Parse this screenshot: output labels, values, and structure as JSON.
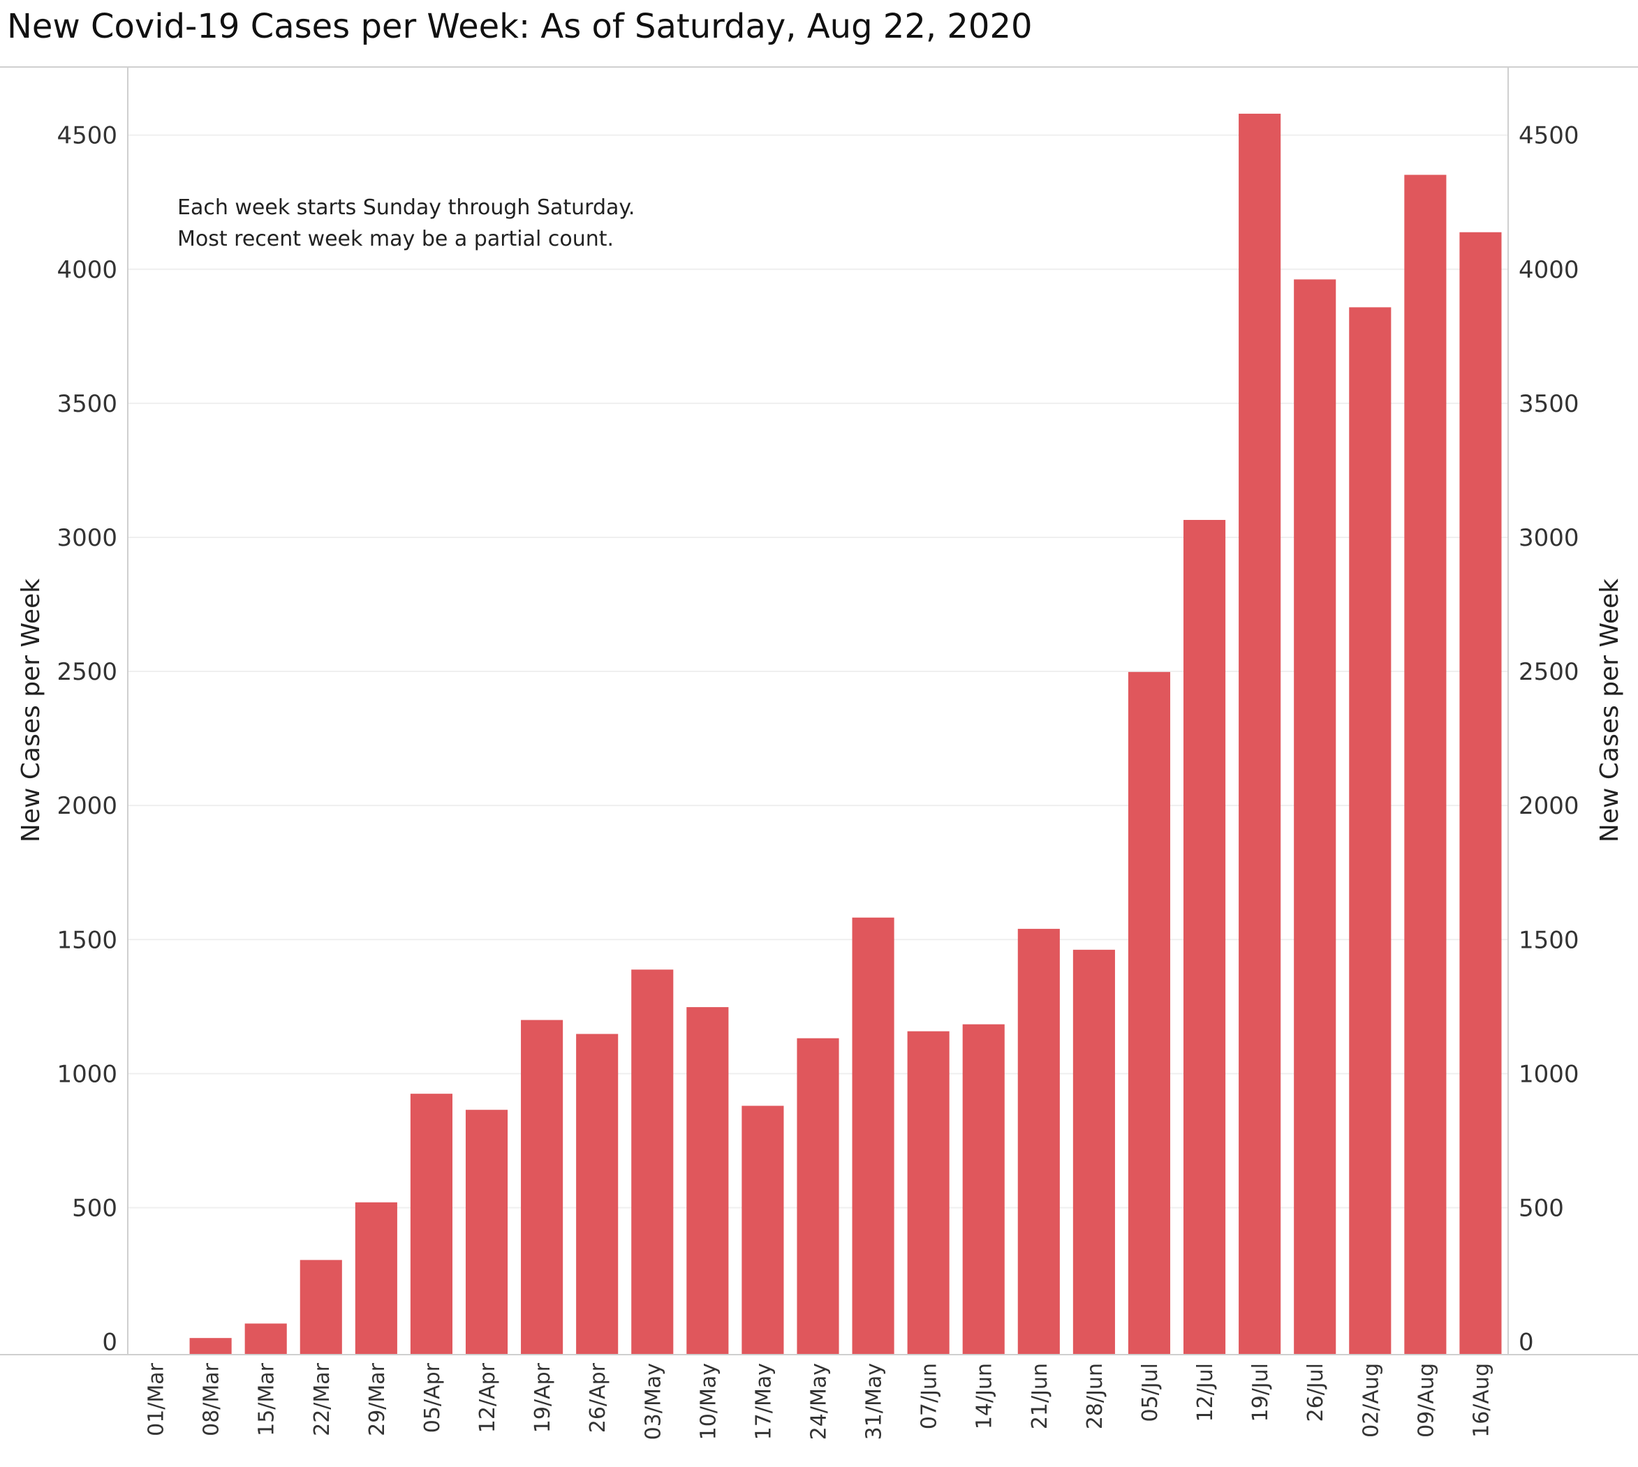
{
  "chart_data": {
    "type": "bar",
    "title": "New Covid-19 Cases per Week:  As of Saturday, Aug 22, 2020",
    "ylabel_left": "New Cases per Week",
    "ylabel_right": "New Cases per Week",
    "annotation": [
      "Each week starts Sunday through Saturday.",
      "Most recent week may be a partial count."
    ],
    "categories": [
      "01/Mar",
      "08/Mar",
      "15/Mar",
      "22/Mar",
      "29/Mar",
      "05/Apr",
      "12/Apr",
      "19/Apr",
      "26/Apr",
      "03/May",
      "10/May",
      "17/May",
      "24/May",
      "31/May",
      "07/Jun",
      "14/Jun",
      "21/Jun",
      "28/Jun",
      "05/Jul",
      "12/Jul",
      "19/Jul",
      "26/Jul",
      "02/Aug",
      "09/Aug",
      "16/Aug"
    ],
    "values": [
      0,
      14,
      68,
      305,
      520,
      925,
      865,
      1200,
      1148,
      1388,
      1248,
      880,
      1132,
      1582,
      1158,
      1184,
      1540,
      1462,
      2498,
      3065,
      4580,
      3962,
      3858,
      4352,
      4138
    ],
    "yticks": [
      "0",
      "500",
      "1000",
      "1500",
      "2000",
      "2500",
      "3000",
      "3500",
      "4000",
      "4500"
    ],
    "ylim": [
      0,
      4800
    ],
    "grid": true,
    "bar_color": "#e0575c"
  }
}
